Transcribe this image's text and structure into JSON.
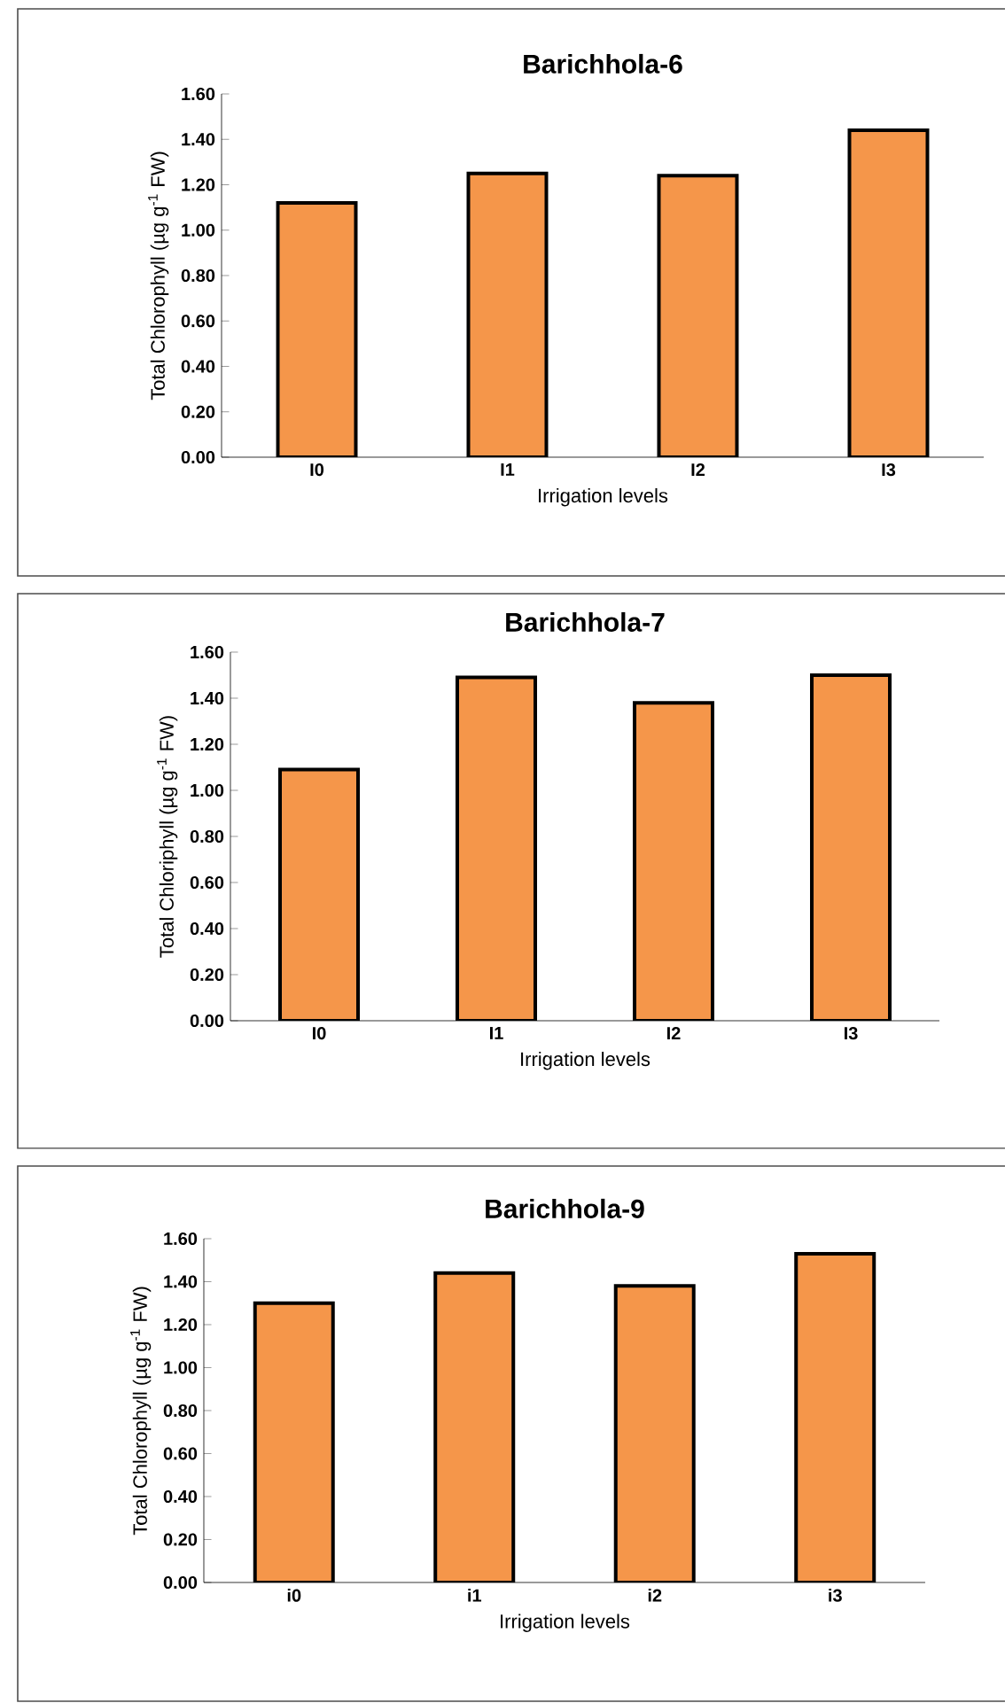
{
  "chart_data": [
    {
      "type": "bar",
      "title": "Barichhola-6",
      "xlabel": "Irrigation levels",
      "ylabel": "Total Chlorophyll (µg g$^{-1}$ FW)",
      "categories": [
        "I0",
        "I1",
        "I2",
        "I3"
      ],
      "values": [
        1.12,
        1.25,
        1.24,
        1.44
      ],
      "color": "#f5964a",
      "ylim": [
        0,
        1.6
      ],
      "yticks": [
        {
          "value": 0,
          "label": "0.00"
        },
        {
          "value": 0.2,
          "label": "0.20"
        },
        {
          "value": 0.4,
          "label": "0.40"
        },
        {
          "value": 0.6,
          "label": "0.60"
        },
        {
          "value": 0.8,
          "label": "0.80"
        },
        {
          "value": 1.0,
          "label": "1.00"
        },
        {
          "value": 1.2,
          "label": "1.20"
        },
        {
          "value": 1.4,
          "label": "1.40"
        },
        {
          "value": 1.6,
          "label": "1.60"
        }
      ]
    },
    {
      "type": "bar",
      "title": "Barichhola-7",
      "xlabel": "Irrigation levels",
      "ylabel": "Total Chloriphyll (µg g$^{-1}$ FW)",
      "categories": [
        "I0",
        "I1",
        "I2",
        "I3"
      ],
      "values": [
        1.09,
        1.49,
        1.38,
        1.5
      ],
      "color": "#f5964a",
      "ylim": [
        0,
        1.6
      ],
      "yticks": [
        {
          "value": 0,
          "label": "0.00"
        },
        {
          "value": 0.2,
          "label": "0.20"
        },
        {
          "value": 0.4,
          "label": "0.40"
        },
        {
          "value": 0.6,
          "label": "0.60"
        },
        {
          "value": 0.8,
          "label": "0.80"
        },
        {
          "value": 1.0,
          "label": "1.00"
        },
        {
          "value": 1.2,
          "label": "1.20"
        },
        {
          "value": 1.4,
          "label": "1.40"
        },
        {
          "value": 1.6,
          "label": "1.60"
        }
      ]
    },
    {
      "type": "bar",
      "title": "Barichhola-9",
      "xlabel": "Irrigation levels",
      "ylabel": "Total Chlorophyll (µg g$^{-1}$ FW)",
      "categories": [
        "i0",
        "i1",
        "i2",
        "i3"
      ],
      "values": [
        1.3,
        1.44,
        1.38,
        1.53
      ],
      "color": "#f5964a",
      "ylim": [
        0,
        1.6
      ],
      "yticks": [
        {
          "value": 0,
          "label": "0.00"
        },
        {
          "value": 0.2,
          "label": "0.20"
        },
        {
          "value": 0.4,
          "label": "0.40"
        },
        {
          "value": 0.6,
          "label": "0.60"
        },
        {
          "value": 0.8,
          "label": "0.80"
        },
        {
          "value": 1.0,
          "label": "1.00"
        },
        {
          "value": 1.2,
          "label": "1.20"
        },
        {
          "value": 1.4,
          "label": "1.40"
        },
        {
          "value": 1.6,
          "label": "1.60"
        }
      ]
    }
  ]
}
